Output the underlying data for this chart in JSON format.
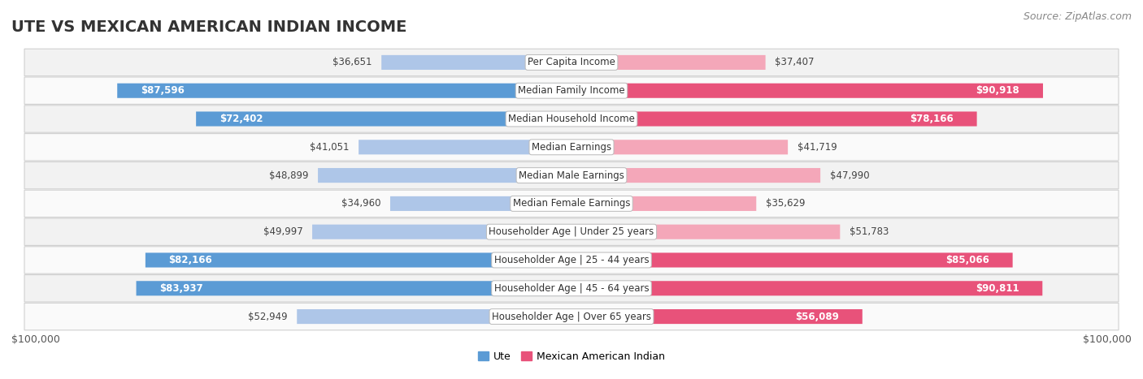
{
  "title": "UTE VS MEXICAN AMERICAN INDIAN INCOME",
  "source": "Source: ZipAtlas.com",
  "categories": [
    "Per Capita Income",
    "Median Family Income",
    "Median Household Income",
    "Median Earnings",
    "Median Male Earnings",
    "Median Female Earnings",
    "Householder Age | Under 25 years",
    "Householder Age | 25 - 44 years",
    "Householder Age | 45 - 64 years",
    "Householder Age | Over 65 years"
  ],
  "ute_values": [
    36651,
    87596,
    72402,
    41051,
    48899,
    34960,
    49997,
    82166,
    83937,
    52949
  ],
  "mex_values": [
    37407,
    90918,
    78166,
    41719,
    47990,
    35629,
    51783,
    85066,
    90811,
    56089
  ],
  "ute_labels": [
    "$36,651",
    "$87,596",
    "$72,402",
    "$41,051",
    "$48,899",
    "$34,960",
    "$49,997",
    "$82,166",
    "$83,937",
    "$52,949"
  ],
  "mex_labels": [
    "$37,407",
    "$90,918",
    "$78,166",
    "$41,719",
    "$47,990",
    "$35,629",
    "$51,783",
    "$85,066",
    "$90,811",
    "$56,089"
  ],
  "max_val": 100000,
  "ute_color_light": "#aec6e8",
  "ute_color_dark": "#5b9bd5",
  "mex_color_light": "#f4a7b9",
  "mex_color_dark": "#e8527a",
  "bg_color": "#ffffff",
  "row_bg_even": "#f2f2f2",
  "row_bg_odd": "#fafafa",
  "label_bg": "#ffffff",
  "bar_height": 0.52,
  "label_in_threshold": 55000,
  "legend_ute": "Ute",
  "legend_mex": "Mexican American Indian",
  "xlabel_left": "$100,000",
  "xlabel_right": "$100,000",
  "title_fontsize": 14,
  "source_fontsize": 9,
  "label_fontsize": 8.5,
  "value_fontsize": 8.5,
  "cat_label_fontsize": 8.5
}
